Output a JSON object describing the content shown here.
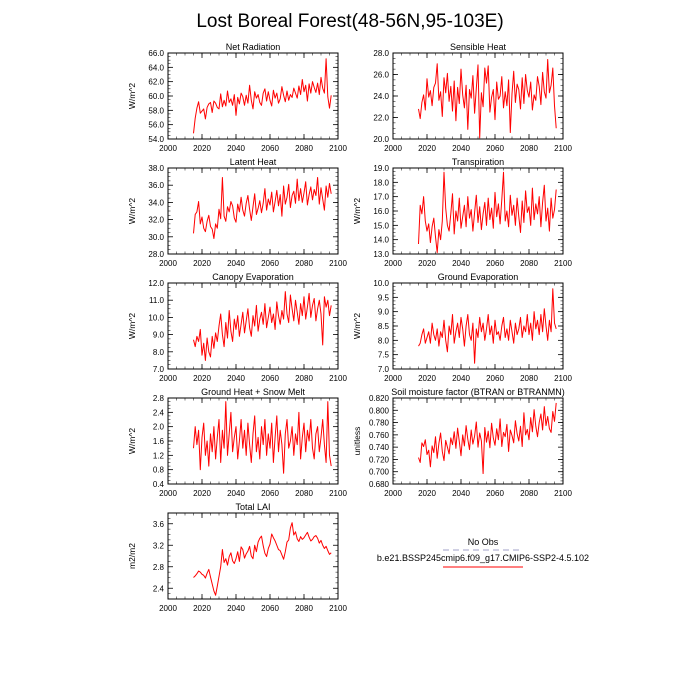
{
  "title": "Lost Boreal Forest(48-56N,95-103E)",
  "legend": {
    "obs_label": "No Obs",
    "model_label": "b.e21.BSSP245cmip6.f09_g17.CMIP6-SSP2-4.5.102",
    "obs_color": "#a0a0c8",
    "model_color": "#ff0000"
  },
  "chart_data": [
    {
      "type": "line",
      "title": "Net Radiation",
      "ylabel": "W/m^2",
      "xlabel": "",
      "xlim": [
        2000,
        2100
      ],
      "ylim": [
        54.0,
        66.0
      ],
      "xticks": [
        "2000",
        "2020",
        "2040",
        "2060",
        "2080",
        "2100"
      ],
      "yticks": [
        "54.0",
        "56.0",
        "58.0",
        "60.0",
        "62.0",
        "64.0",
        "66.0"
      ],
      "x_start": 2015,
      "series": [
        {
          "color": "#ff0000",
          "values": [
            54.8,
            56.9,
            58.3,
            59.2,
            57.6,
            57.9,
            58.2,
            56.8,
            58.4,
            58.9,
            59.1,
            57.7,
            59.3,
            59.0,
            58.4,
            58.2,
            60.3,
            58.5,
            59.4,
            58.6,
            60.7,
            59.1,
            59.6,
            58.7,
            60.2,
            57.3,
            59.8,
            58.9,
            60.4,
            59.9,
            58.7,
            60.1,
            59.0,
            61.5,
            59.4,
            58.2,
            60.6,
            59.7,
            60.2,
            59.1,
            58.7,
            60.4,
            61.0,
            59.3,
            60.6,
            59.4,
            58.6,
            60.8,
            59.7,
            60.4,
            59.0,
            59.6,
            61.3,
            60.1,
            59.2,
            60.7,
            59.4,
            60.2,
            59.8,
            61.1,
            60.4,
            59.7,
            61.4,
            60.2,
            62.3,
            60.6,
            61.5,
            59.3,
            61.7,
            60.4,
            62.0,
            61.2,
            60.5,
            61.8,
            60.2,
            62.6,
            61.1,
            60.4,
            65.2,
            59.9,
            58.3,
            60.1
          ]
        }
      ]
    },
    {
      "type": "line",
      "title": "Sensible Heat",
      "ylabel": "",
      "xlabel": "",
      "xlim": [
        2000,
        2100
      ],
      "ylim": [
        20.0,
        28.0
      ],
      "xticks": [
        "2000",
        "2020",
        "2040",
        "2060",
        "2080",
        "2100"
      ],
      "yticks": [
        "20.0",
        "22.0",
        "24.0",
        "26.0",
        "28.0"
      ],
      "x_start": 2015,
      "series": [
        {
          "color": "#ff0000",
          "values": [
            22.8,
            21.9,
            23.4,
            24.1,
            22.7,
            25.6,
            23.9,
            24.5,
            23.1,
            24.8,
            25.2,
            27.0,
            23.6,
            24.4,
            22.1,
            25.7,
            24.3,
            26.1,
            23.5,
            24.9,
            22.6,
            25.4,
            21.7,
            24.8,
            23.3,
            26.5,
            24.1,
            22.9,
            25.0,
            20.9,
            24.6,
            23.8,
            25.9,
            22.4,
            24.7,
            26.9,
            20.1,
            24.3,
            23.0,
            26.6,
            25.2,
            26.8,
            22.5,
            23.9,
            24.6,
            21.8,
            25.3,
            23.7,
            24.0,
            25.8,
            22.9,
            24.4,
            23.1,
            25.5,
            20.6,
            24.2,
            26.3,
            23.4,
            25.1,
            24.6,
            22.8,
            25.7,
            23.3,
            26.0,
            24.5,
            23.9,
            25.3,
            22.7,
            24.1,
            23.6,
            25.8,
            24.9,
            23.2,
            26.2,
            24.4,
            23.8,
            27.4,
            24.3,
            25.0,
            26.6,
            23.1,
            21.0
          ]
        }
      ]
    },
    {
      "type": "line",
      "title": "Latent Heat",
      "ylabel": "W/m^2",
      "xlabel": "",
      "xlim": [
        2000,
        2100
      ],
      "ylim": [
        28.0,
        38.0
      ],
      "xticks": [
        "2000",
        "2020",
        "2040",
        "2060",
        "2080",
        "2100"
      ],
      "yticks": [
        "28.0",
        "30.0",
        "32.0",
        "34.0",
        "36.0",
        "38.0"
      ],
      "x_start": 2015,
      "series": [
        {
          "color": "#ff0000",
          "values": [
            30.4,
            32.6,
            32.9,
            34.1,
            31.5,
            32.3,
            31.0,
            30.6,
            31.8,
            32.5,
            31.2,
            30.9,
            29.8,
            31.5,
            31.0,
            33.2,
            32.1,
            36.9,
            32.4,
            31.8,
            33.5,
            32.9,
            34.1,
            33.6,
            32.2,
            31.7,
            33.8,
            32.9,
            34.6,
            33.1,
            32.4,
            33.9,
            34.8,
            33.2,
            31.9,
            33.5,
            35.0,
            32.6,
            33.3,
            34.2,
            32.8,
            33.9,
            35.6,
            33.1,
            34.4,
            33.7,
            35.2,
            32.9,
            34.1,
            35.4,
            33.6,
            34.9,
            32.4,
            35.9,
            33.8,
            34.6,
            36.1,
            33.4,
            34.8,
            35.3,
            33.9,
            36.7,
            34.2,
            35.6,
            34.0,
            35.1,
            36.4,
            33.7,
            34.9,
            35.8,
            34.3,
            35.5,
            34.8,
            36.9,
            33.8,
            35.7,
            34.4,
            33.1,
            35.9,
            34.6,
            36.2,
            35.0
          ]
        }
      ]
    },
    {
      "type": "line",
      "title": "Transpiration",
      "ylabel": "W/m^2",
      "xlabel": "",
      "xlim": [
        2000,
        2100
      ],
      "ylim": [
        13.0,
        19.0
      ],
      "xticks": [
        "2000",
        "2020",
        "2040",
        "2060",
        "2080",
        "2100"
      ],
      "yticks": [
        "13.0",
        "14.0",
        "15.0",
        "16.0",
        "17.0",
        "18.0",
        "19.0"
      ],
      "x_start": 2015,
      "series": [
        {
          "color": "#ff0000",
          "values": [
            13.7,
            16.4,
            15.8,
            17.0,
            15.3,
            14.6,
            15.1,
            13.8,
            14.9,
            15.5,
            14.2,
            13.1,
            14.7,
            14.0,
            15.3,
            18.7,
            16.2,
            15.0,
            14.6,
            15.8,
            17.2,
            14.4,
            16.0,
            15.3,
            16.9,
            14.8,
            15.6,
            16.4,
            14.9,
            17.0,
            15.5,
            16.1,
            14.6,
            15.9,
            17.1,
            15.2,
            16.3,
            14.7,
            15.8,
            16.6,
            15.0,
            16.9,
            15.4,
            16.2,
            14.8,
            17.3,
            15.6,
            16.5,
            15.1,
            16.8,
            18.7,
            15.3,
            16.0,
            14.9,
            17.1,
            15.7,
            16.4,
            15.0,
            16.9,
            15.6,
            14.5,
            16.7,
            15.2,
            17.4,
            15.9,
            16.3,
            15.0,
            17.6,
            15.4,
            16.5,
            15.8,
            17.0,
            14.9,
            16.6,
            17.8,
            15.3,
            16.2,
            14.6,
            16.9,
            15.5,
            16.1,
            17.5
          ]
        }
      ]
    },
    {
      "type": "line",
      "title": "Canopy Evaporation",
      "ylabel": "W/m^2",
      "xlabel": "",
      "xlim": [
        2000,
        2100
      ],
      "ylim": [
        7.0,
        12.0
      ],
      "xticks": [
        "2000",
        "2020",
        "2040",
        "2060",
        "2080",
        "2100"
      ],
      "yticks": [
        "7.0",
        "8.0",
        "9.0",
        "10.0",
        "11.0",
        "12.0"
      ],
      "x_start": 2015,
      "series": [
        {
          "color": "#ff0000",
          "values": [
            8.7,
            8.3,
            8.9,
            8.6,
            9.3,
            7.8,
            8.5,
            7.5,
            8.8,
            8.0,
            7.7,
            8.9,
            8.2,
            9.1,
            8.6,
            9.5,
            10.2,
            9.0,
            8.3,
            9.7,
            8.8,
            10.4,
            9.2,
            8.6,
            9.9,
            9.3,
            10.1,
            8.9,
            9.6,
            10.3,
            9.1,
            9.8,
            10.5,
            9.4,
            8.9,
            10.1,
            9.5,
            10.7,
            9.2,
            9.9,
            10.3,
            9.6,
            10.8,
            9.4,
            10.0,
            10.6,
            9.7,
            10.2,
            9.3,
            10.9,
            10.1,
            9.6,
            10.4,
            9.9,
            11.5,
            10.2,
            9.7,
            11.3,
            10.5,
            9.8,
            11.0,
            10.3,
            9.6,
            10.8,
            10.1,
            11.2,
            9.9,
            10.6,
            11.4,
            10.0,
            10.7,
            11.1,
            9.8,
            10.5,
            11.0,
            10.2,
            8.4,
            11.2,
            10.6,
            11.0,
            10.1,
            10.7
          ]
        }
      ]
    },
    {
      "type": "line",
      "title": "Ground Evaporation",
      "ylabel": "W/m^2",
      "xlabel": "",
      "xlim": [
        2000,
        2100
      ],
      "ylim": [
        7.0,
        10.0
      ],
      "xticks": [
        "2000",
        "2020",
        "2040",
        "2060",
        "2080",
        "2100"
      ],
      "yticks": [
        "7.0",
        "7.5",
        "8.0",
        "8.5",
        "9.0",
        "9.5",
        "10.0"
      ],
      "x_start": 2015,
      "series": [
        {
          "color": "#ff0000",
          "values": [
            7.8,
            7.9,
            8.2,
            8.4,
            7.9,
            8.1,
            8.3,
            7.9,
            8.6,
            8.2,
            8.0,
            8.4,
            7.8,
            8.3,
            8.1,
            8.7,
            8.0,
            7.6,
            8.5,
            8.2,
            8.9,
            7.9,
            8.3,
            8.6,
            8.1,
            8.8,
            8.4,
            7.8,
            8.5,
            8.9,
            8.2,
            8.0,
            8.6,
            7.2,
            8.4,
            8.1,
            8.8,
            8.3,
            8.6,
            8.0,
            8.4,
            8.9,
            8.2,
            8.5,
            7.9,
            8.7,
            8.2,
            8.3,
            8.0,
            8.5,
            8.8,
            8.1,
            8.4,
            8.0,
            8.7,
            8.3,
            7.9,
            8.6,
            8.2,
            8.4,
            8.8,
            8.1,
            8.5,
            8.3,
            8.9,
            8.2,
            8.6,
            8.0,
            9.0,
            8.4,
            8.7,
            8.2,
            8.9,
            8.3,
            9.1,
            8.5,
            8.0,
            8.7,
            8.3,
            9.8,
            8.6,
            8.4
          ]
        }
      ]
    },
    {
      "type": "line",
      "title": "Ground Heat + Snow Melt",
      "ylabel": "W/m^2",
      "xlabel": "",
      "xlim": [
        2000,
        2100
      ],
      "ylim": [
        0.4,
        2.8
      ],
      "xticks": [
        "2000",
        "2020",
        "2040",
        "2060",
        "2080",
        "2100"
      ],
      "yticks": [
        "0.4",
        "0.8",
        "1.2",
        "1.6",
        "2.0",
        "2.4",
        "2.8"
      ],
      "x_start": 2015,
      "series": [
        {
          "color": "#ff0000",
          "values": [
            1.4,
            2.0,
            1.5,
            1.9,
            0.8,
            1.7,
            2.1,
            1.2,
            1.6,
            0.9,
            1.8,
            1.3,
            2.0,
            1.1,
            1.7,
            2.2,
            1.0,
            1.9,
            1.4,
            2.7,
            1.2,
            1.8,
            2.4,
            1.3,
            1.7,
            2.0,
            1.1,
            1.6,
            2.2,
            1.4,
            1.9,
            1.2,
            2.1,
            1.5,
            1.0,
            1.8,
            2.3,
            1.3,
            1.7,
            1.1,
            2.0,
            1.5,
            2.2,
            1.2,
            1.8,
            1.4,
            2.1,
            1.0,
            1.7,
            2.3,
            1.3,
            1.9,
            1.5,
            0.7,
            1.8,
            2.2,
            1.4,
            1.6,
            2.0,
            1.2,
            1.8,
            1.5,
            2.4,
            1.1,
            1.7,
            2.1,
            1.3,
            1.9,
            1.6,
            2.2,
            1.4,
            1.1,
            1.8,
            2.0,
            1.3,
            1.7,
            2.2,
            1.5,
            1.0,
            2.7,
            1.2,
            0.9
          ]
        }
      ]
    },
    {
      "type": "line",
      "title": "Soil moisture factor (BTRAN or BTRANMN)",
      "ylabel": "unitless",
      "xlabel": "",
      "xlim": [
        2000,
        2100
      ],
      "ylim": [
        0.68,
        0.82
      ],
      "xticks": [
        "2000",
        "2020",
        "2040",
        "2060",
        "2080",
        "2100"
      ],
      "yticks": [
        "0.680",
        "0.700",
        "0.720",
        "0.740",
        "0.760",
        "0.780",
        "0.800",
        "0.820"
      ],
      "x_start": 2015,
      "series": [
        {
          "color": "#ff0000",
          "values": [
            0.723,
            0.715,
            0.747,
            0.741,
            0.752,
            0.728,
            0.735,
            0.708,
            0.742,
            0.731,
            0.757,
            0.722,
            0.746,
            0.763,
            0.733,
            0.718,
            0.751,
            0.74,
            0.729,
            0.755,
            0.744,
            0.765,
            0.738,
            0.771,
            0.749,
            0.726,
            0.76,
            0.742,
            0.775,
            0.753,
            0.736,
            0.768,
            0.745,
            0.758,
            0.781,
            0.74,
            0.763,
            0.75,
            0.697,
            0.772,
            0.748,
            0.766,
            0.739,
            0.779,
            0.755,
            0.743,
            0.77,
            0.752,
            0.786,
            0.741,
            0.764,
            0.757,
            0.777,
            0.733,
            0.768,
            0.759,
            0.747,
            0.783,
            0.762,
            0.75,
            0.774,
            0.741,
            0.796,
            0.76,
            0.769,
            0.752,
            0.788,
            0.765,
            0.801,
            0.774,
            0.757,
            0.78,
            0.794,
            0.768,
            0.806,
            0.775,
            0.79,
            0.77,
            0.764,
            0.798,
            0.782,
            0.812
          ]
        }
      ]
    },
    {
      "type": "line",
      "title": "Total LAI",
      "ylabel": "m2/m2",
      "xlabel": "",
      "xlim": [
        2000,
        2100
      ],
      "ylim": [
        2.2,
        3.8
      ],
      "xticks": [
        "2000",
        "2020",
        "2040",
        "2060",
        "2080",
        "2100"
      ],
      "yticks": [
        "2.4",
        "2.8",
        "3.2",
        "3.6"
      ],
      "x_start": 2015,
      "series": [
        {
          "color": "#ff0000",
          "values": [
            2.6,
            2.63,
            2.67,
            2.72,
            2.7,
            2.66,
            2.64,
            2.59,
            2.68,
            2.75,
            2.61,
            2.48,
            2.35,
            2.27,
            2.44,
            2.62,
            2.8,
            3.12,
            2.88,
            2.95,
            2.83,
            2.99,
            3.06,
            2.91,
            2.86,
            2.95,
            3.08,
            2.9,
            3.17,
            3.12,
            2.96,
            3.04,
            3.09,
            3.18,
            3.0,
            2.95,
            3.2,
            3.08,
            3.26,
            3.33,
            3.37,
            3.19,
            3.05,
            2.99,
            3.14,
            3.22,
            3.41,
            3.34,
            3.28,
            3.2,
            3.12,
            3.1,
            3.02,
            2.94,
            3.08,
            3.26,
            3.3,
            3.52,
            3.62,
            3.39,
            3.45,
            3.32,
            3.27,
            3.36,
            3.31,
            3.34,
            3.39,
            3.44,
            3.35,
            3.28,
            3.31,
            3.36,
            3.38,
            3.33,
            3.24,
            3.29,
            3.2,
            3.14,
            3.18,
            3.1,
            3.03,
            3.06
          ]
        }
      ]
    }
  ]
}
